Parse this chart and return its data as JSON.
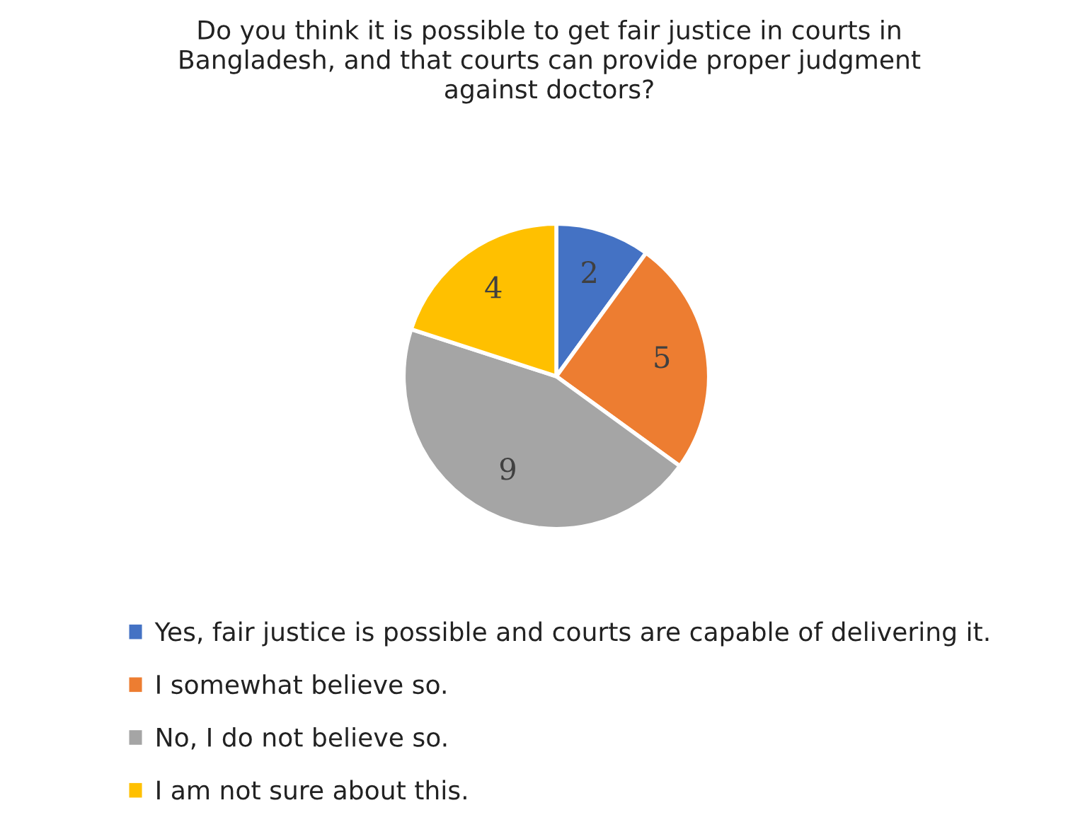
{
  "chart_data": {
    "type": "pie",
    "title": "Do you think it is possible to get fair justice in courts in\nBangladesh, and that courts can provide proper judgment\nagainst doctors?",
    "categories": [
      "Yes, fair justice is possible and courts are capable of delivering it.",
      "I somewhat believe so.",
      "No, I do not believe so.",
      "I am not sure about this."
    ],
    "values": [
      2,
      5,
      9,
      4
    ],
    "colors": [
      "#4472c4",
      "#ed7d31",
      "#a5a5a5",
      "#ffc000"
    ],
    "data_labels": true,
    "legend": "bottom"
  }
}
